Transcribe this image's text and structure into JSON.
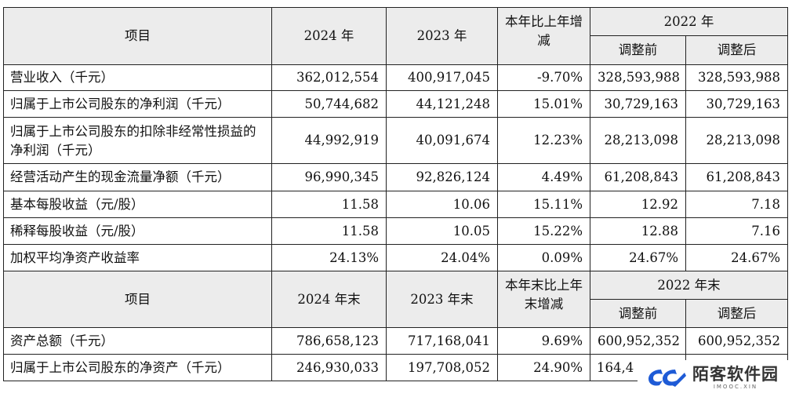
{
  "table1": {
    "header": {
      "item": "项目",
      "y2024": "2024 年",
      "y2023": "2023 年",
      "change": "本年比上年增减",
      "y2022": "2022 年",
      "before": "调整前",
      "after": "调整后"
    },
    "rows": [
      {
        "label": "营业收入（千元）",
        "v2024": "362,012,554",
        "v2023": "400,917,045",
        "chg": "-9.70%",
        "before": "328,593,988",
        "after": "328,593,988"
      },
      {
        "label": "归属于上市公司股东的净利润（千元）",
        "v2024": "50,744,682",
        "v2023": "44,121,248",
        "chg": "15.01%",
        "before": "30,729,163",
        "after": "30,729,163"
      },
      {
        "label": "归属于上市公司股东的扣除非经常性损益的净利润（千元）",
        "v2024": "44,992,919",
        "v2023": "40,091,674",
        "chg": "12.23%",
        "before": "28,213,098",
        "after": "28,213,098"
      },
      {
        "label": "经营活动产生的现金流量净额（千元）",
        "v2024": "96,990,345",
        "v2023": "92,826,124",
        "chg": "4.49%",
        "before": "61,208,843",
        "after": "61,208,843"
      },
      {
        "label": "基本每股收益（元/股）",
        "v2024": "11.58",
        "v2023": "10.06",
        "chg": "15.11%",
        "before": "12.92",
        "after": "7.18"
      },
      {
        "label": "稀释每股收益（元/股）",
        "v2024": "11.58",
        "v2023": "10.05",
        "chg": "15.22%",
        "before": "12.88",
        "after": "7.16"
      },
      {
        "label": "加权平均净资产收益率",
        "v2024": "24.13%",
        "v2023": "24.04%",
        "chg": "0.09%",
        "before": "24.67%",
        "after": "24.67%"
      }
    ]
  },
  "table2": {
    "header": {
      "item": "项目",
      "y2024": "2024 年末",
      "y2023": "2023 年末",
      "change": "本年末比上年末增减",
      "y2022": "2022 年末",
      "before": "调整前",
      "after": "调整后"
    },
    "rows": [
      {
        "label": "资产总额（千元）",
        "v2024": "786,658,123",
        "v2023": "717,168,041",
        "chg": "9.69%",
        "before": "600,952,352",
        "after": "600,952,352"
      },
      {
        "label": "归属于上市公司股东的净资产（千元）",
        "v2024": "246,930,033",
        "v2023": "197,708,052",
        "chg": "24.90%",
        "before": "164,4",
        "after": ""
      }
    ]
  },
  "watermark": {
    "name": "陌客软件园",
    "sub": "IMOOC.XIN",
    "color": "#1e5bd6"
  }
}
